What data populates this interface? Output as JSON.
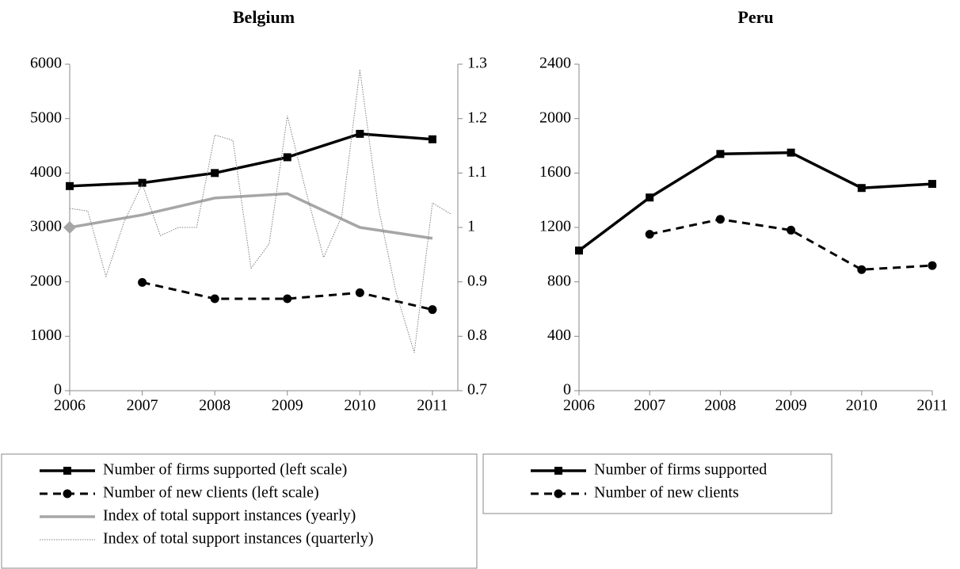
{
  "chart_data": [
    {
      "type": "line",
      "title": "Belgium",
      "x": [
        2006,
        2007,
        2008,
        2009,
        2010,
        2011
      ],
      "xlim": [
        2006,
        2011.35
      ],
      "xticks": [
        2006,
        2007,
        2008,
        2009,
        2010,
        2011
      ],
      "ylim": [
        0,
        6000
      ],
      "yticks": [
        0,
        1000,
        2000,
        3000,
        4000,
        5000,
        6000
      ],
      "y2lim": [
        0.7,
        1.3
      ],
      "y2ticks": [
        0.7,
        0.8,
        0.9,
        1,
        1.1,
        1.2,
        1.3
      ],
      "series": [
        {
          "name": "Number of firms supported (left scale)",
          "color": "#000000",
          "line_style": "solid",
          "marker": "square",
          "values": [
            3760,
            3820,
            4000,
            4290,
            4720,
            4620
          ]
        },
        {
          "name": "Number of new clients (left scale)",
          "color": "#000000",
          "line_style": "dashed",
          "marker": "circle",
          "values": [
            null,
            1990,
            1690,
            1690,
            1800,
            1490
          ]
        },
        {
          "name": "Index of total support instances (yearly)",
          "color": "#a6a6a6",
          "line_style": "solid",
          "marker": "diamond",
          "markers": "first",
          "axis": "y2",
          "values": [
            1,
            1.023,
            1.054,
            1.062,
            1,
            0.98
          ]
        },
        {
          "name": "Index of total support instances (quarterly)",
          "color": "#808080",
          "line_style": "dotted",
          "axis": "y2",
          "x": [
            2006,
            2006.25,
            2006.5,
            2006.75,
            2007,
            2007.25,
            2007.5,
            2007.75,
            2008,
            2008.25,
            2008.5,
            2008.75,
            2009,
            2009.25,
            2009.5,
            2009.75,
            2010,
            2010.25,
            2010.5,
            2010.75,
            2011,
            2011.25
          ],
          "values": [
            1.035,
            1.03,
            0.91,
            1.01,
            1.08,
            0.985,
            1,
            1,
            1.17,
            1.16,
            0.925,
            0.97,
            1.205,
            1.07,
            0.945,
            1.02,
            1.29,
            1.04,
            0.88,
            0.77,
            1.045,
            1.025
          ]
        }
      ]
    },
    {
      "type": "line",
      "title": "Peru",
      "x": [
        2006,
        2007,
        2008,
        2009,
        2010,
        2011
      ],
      "xlim": [
        2006,
        2011
      ],
      "xticks": [
        2006,
        2007,
        2008,
        2009,
        2010,
        2011
      ],
      "ylim": [
        0,
        2400
      ],
      "yticks": [
        0,
        400,
        800,
        1200,
        1600,
        2000,
        2400
      ],
      "series": [
        {
          "name": "Number of firms supported",
          "color": "#000000",
          "line_style": "solid",
          "marker": "square",
          "values": [
            1030,
            1420,
            1740,
            1750,
            1490,
            1520
          ]
        },
        {
          "name": "Number of new clients",
          "color": "#000000",
          "line_style": "dashed",
          "marker": "circle",
          "values": [
            null,
            1150,
            1260,
            1180,
            890,
            920
          ]
        }
      ]
    }
  ]
}
